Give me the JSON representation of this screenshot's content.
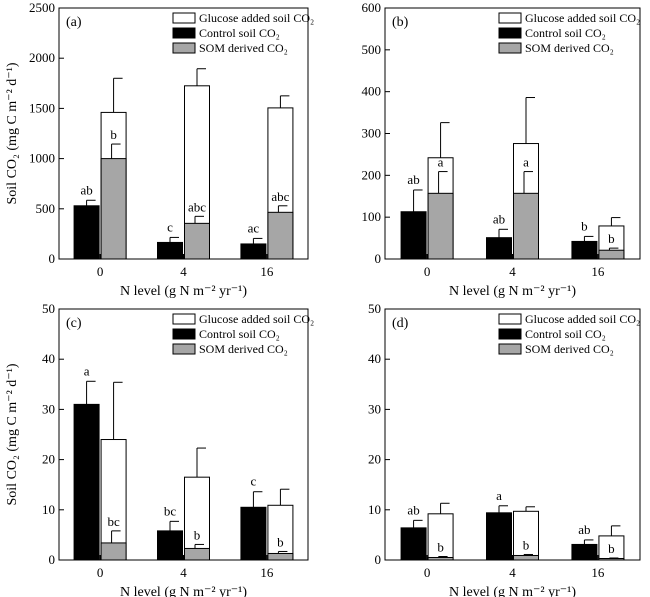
{
  "figure": {
    "ylabel": "Soil CO₂ (mg C m⁻² d⁻¹)",
    "xlabel": "N level (g N m⁻² yr⁻¹)",
    "legend": {
      "glucose": "Glucose added soil CO₂",
      "control": "Control soil CO₂",
      "som": "SOM derived CO₂"
    }
  },
  "colors": {
    "control": "#000000",
    "som": "#a6a6a6",
    "glucose": "#ffffff",
    "stroke": "#000000"
  },
  "chart_data": [
    {
      "type": "bar",
      "panel_label": "(a)",
      "categories": [
        "0",
        "4",
        "16"
      ],
      "ylim": [
        0,
        2500
      ],
      "yticks": [
        0,
        500,
        1000,
        1500,
        2000,
        2500
      ],
      "series": [
        {
          "name": "Control soil CO₂",
          "values": [
            530,
            165,
            150
          ],
          "errors": [
            55,
            50,
            55
          ]
        },
        {
          "name": "SOM derived CO₂",
          "values": [
            1000,
            355,
            465
          ],
          "errors": [
            145,
            70,
            65
          ]
        },
        {
          "name": "Glucose added soil CO₂",
          "values": [
            1460,
            1725,
            1505
          ],
          "errors": [
            340,
            170,
            120
          ]
        }
      ],
      "sig_labels": {
        "control": [
          "ab",
          "c",
          "ac"
        ],
        "som": [
          "b",
          "abc",
          "abc"
        ],
        "glucose": [
          "",
          "",
          ""
        ]
      }
    },
    {
      "type": "bar",
      "panel_label": "(b)",
      "categories": [
        "0",
        "4",
        "16"
      ],
      "ylim": [
        0,
        600
      ],
      "yticks": [
        0,
        100,
        200,
        300,
        400,
        500,
        600
      ],
      "series": [
        {
          "name": "Control soil CO₂",
          "values": [
            113,
            51,
            42
          ],
          "errors": [
            52,
            20,
            12
          ]
        },
        {
          "name": "SOM derived CO₂",
          "values": [
            157,
            157,
            21
          ],
          "errors": [
            52,
            52,
            5
          ]
        },
        {
          "name": "Glucose added soil CO₂",
          "values": [
            242,
            276,
            79
          ],
          "errors": [
            84,
            110,
            20
          ]
        }
      ],
      "sig_labels": {
        "control": [
          "ab",
          "ab",
          "b"
        ],
        "som": [
          "",
          "",
          ""
        ],
        "glucose": [
          "a",
          "a",
          "b"
        ]
      }
    },
    {
      "type": "bar",
      "panel_label": "(c)",
      "categories": [
        "0",
        "4",
        "16"
      ],
      "ylim": [
        0,
        50
      ],
      "yticks": [
        0,
        10,
        20,
        30,
        40,
        50
      ],
      "series": [
        {
          "name": "Control soil CO₂",
          "values": [
            31.0,
            5.8,
            10.5
          ],
          "errors": [
            4.6,
            1.9,
            3.1
          ]
        },
        {
          "name": "SOM derived CO₂",
          "values": [
            3.4,
            2.3,
            1.3
          ],
          "errors": [
            2.4,
            0.8,
            0.4
          ]
        },
        {
          "name": "Glucose added soil CO₂",
          "values": [
            24.0,
            16.5,
            10.9
          ],
          "errors": [
            11.4,
            5.8,
            3.2
          ]
        }
      ],
      "sig_labels": {
        "control": [
          "a",
          "bc",
          "c"
        ],
        "som": [
          "bc",
          "b",
          "b"
        ],
        "glucose": [
          "",
          "",
          ""
        ]
      }
    },
    {
      "type": "bar",
      "panel_label": "(d)",
      "categories": [
        "0",
        "4",
        "16"
      ],
      "ylim": [
        0,
        50
      ],
      "yticks": [
        0,
        10,
        20,
        30,
        40,
        50
      ],
      "series": [
        {
          "name": "Control soil CO₂",
          "values": [
            6.4,
            9.4,
            3.1
          ],
          "errors": [
            1.5,
            1.4,
            0.9
          ]
        },
        {
          "name": "SOM derived CO₂",
          "values": [
            0.5,
            0.9,
            0.3
          ],
          "errors": [
            0.2,
            0.2,
            0.1
          ]
        },
        {
          "name": "Glucose added soil CO₂",
          "values": [
            9.2,
            9.7,
            4.8
          ],
          "errors": [
            2.1,
            0.9,
            2.0
          ]
        }
      ],
      "sig_labels": {
        "control": [
          "ab",
          "a",
          "ab"
        ],
        "som": [
          "b",
          "b",
          "b"
        ],
        "glucose": [
          "",
          "",
          ""
        ]
      }
    }
  ]
}
